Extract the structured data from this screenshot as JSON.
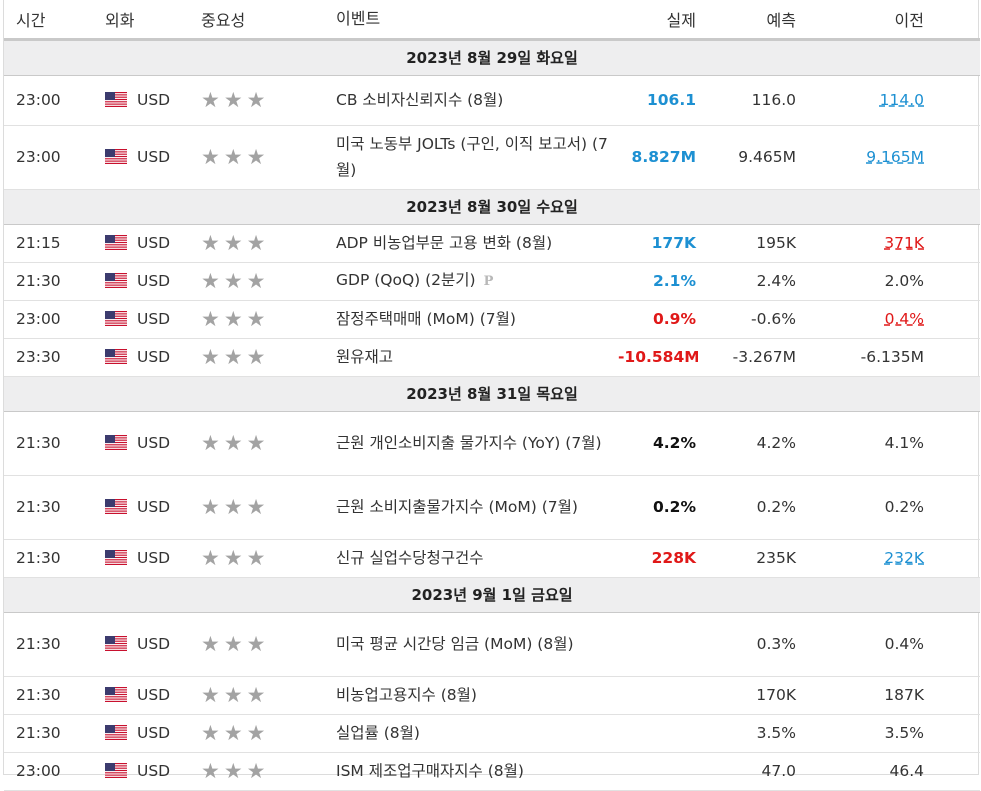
{
  "header": {
    "time": "시간",
    "currency": "외화",
    "importance": "중요성",
    "event": "이벤트",
    "actual": "실제",
    "forecast": "예측",
    "previous": "이전"
  },
  "colors": {
    "blue": "#1d90d2",
    "red": "#e01818",
    "star": "#a3a3a3",
    "date_bg": "#eeeeef"
  },
  "icons": {
    "flag": "us-flag-icon",
    "importance": "star-icon",
    "preliminary": "preliminary-p-icon"
  },
  "importance_stars": "★★★",
  "preliminary_label": "P",
  "sections": [
    {
      "date": "2023년 8월 29일 화요일",
      "events": [
        {
          "time": "23:00",
          "currency": "USD",
          "event": "CB 소비자신뢰지수 (8월)",
          "actual": "106.1",
          "actual_style": "blue",
          "forecast": "116.0",
          "previous": "114.0",
          "previous_style": "link-blue"
        },
        {
          "time": "23:00",
          "currency": "USD",
          "event": "미국 노동부 JOLTs (구인, 이직 보고서) (7월)",
          "actual": "8.827M",
          "actual_style": "blue",
          "forecast": "9.465M",
          "previous": "9.165M",
          "previous_style": "link-blue"
        }
      ]
    },
    {
      "date": "2023년 8월 30일 수요일",
      "events": [
        {
          "time": "21:15",
          "currency": "USD",
          "event": "ADP 비농업부문 고용 변화 (8월)",
          "actual": "177K",
          "actual_style": "blue",
          "forecast": "195K",
          "previous": "371K",
          "previous_style": "link-red"
        },
        {
          "time": "21:30",
          "currency": "USD",
          "event": "GDP (QoQ) (2분기)",
          "preliminary": true,
          "actual": "2.1%",
          "actual_style": "blue",
          "forecast": "2.4%",
          "previous": "2.0%",
          "previous_style": ""
        },
        {
          "time": "23:00",
          "currency": "USD",
          "event": "잠정주택매매 (MoM) (7월)",
          "actual": "0.9%",
          "actual_style": "red",
          "forecast": "-0.6%",
          "previous": "0.4%",
          "previous_style": "link-red"
        },
        {
          "time": "23:30",
          "currency": "USD",
          "event": "원유재고",
          "actual": "-10.584M",
          "actual_style": "red",
          "forecast": "-3.267M",
          "previous": "-6.135M",
          "previous_style": ""
        }
      ]
    },
    {
      "date": "2023년 8월 31일 목요일",
      "events": [
        {
          "time": "21:30",
          "currency": "USD",
          "event": "근원 개인소비지출 물가지수 (YoY) (7월)",
          "actual": "4.2%",
          "actual_style": "black",
          "forecast": "4.2%",
          "previous": "4.1%",
          "previous_style": ""
        },
        {
          "time": "21:30",
          "currency": "USD",
          "event": "근원 소비지출물가지수 (MoM) (7월)",
          "actual": "0.2%",
          "actual_style": "black",
          "forecast": "0.2%",
          "previous": "0.2%",
          "previous_style": ""
        },
        {
          "time": "21:30",
          "currency": "USD",
          "event": "신규 실업수당청구건수",
          "actual": "228K",
          "actual_style": "red",
          "forecast": "235K",
          "previous": "232K",
          "previous_style": "link-blue"
        }
      ]
    },
    {
      "date": "2023년 9월 1일 금요일",
      "events": [
        {
          "time": "21:30",
          "currency": "USD",
          "event": "미국 평균 시간당 임금 (MoM) (8월)",
          "actual": "",
          "actual_style": "",
          "forecast": "0.3%",
          "previous": "0.4%",
          "previous_style": ""
        },
        {
          "time": "21:30",
          "currency": "USD",
          "event": "비농업고용지수 (8월)",
          "actual": "",
          "actual_style": "",
          "forecast": "170K",
          "previous": "187K",
          "previous_style": ""
        },
        {
          "time": "21:30",
          "currency": "USD",
          "event": "실업률 (8월)",
          "actual": "",
          "actual_style": "",
          "forecast": "3.5%",
          "previous": "3.5%",
          "previous_style": ""
        },
        {
          "time": "23:00",
          "currency": "USD",
          "event": "ISM 제조업구매자지수 (8월)",
          "actual": "",
          "actual_style": "",
          "forecast": "47.0",
          "previous": "46.4",
          "previous_style": ""
        }
      ]
    }
  ]
}
